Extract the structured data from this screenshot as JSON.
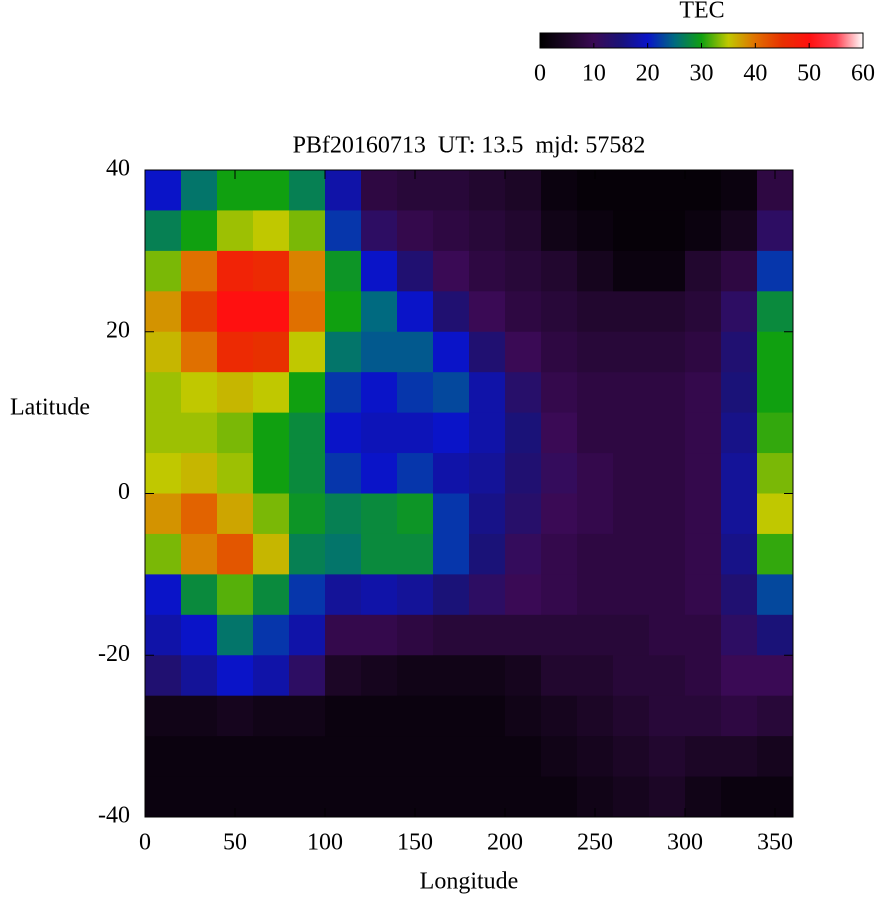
{
  "chart_data": {
    "type": "heatmap",
    "title": "PBf20160713  UT: 13.5  mjd: 57582",
    "x_label": "Longitude",
    "y_label": "Latitude",
    "colorbar_label": "TEC",
    "xlim": [
      0,
      360
    ],
    "ylim": [
      -40,
      40
    ],
    "clim": [
      0,
      60
    ],
    "xticks": [
      0,
      50,
      100,
      150,
      200,
      250,
      300,
      350
    ],
    "yticks": [
      -40,
      -20,
      0,
      20,
      40
    ],
    "cticks": [
      0,
      10,
      20,
      30,
      40,
      50,
      60
    ],
    "cell_width": 20,
    "cell_height": 5,
    "colorscale": [
      [
        0,
        "#000000"
      ],
      [
        5,
        "#1c0626"
      ],
      [
        10,
        "#3a0a55"
      ],
      [
        15,
        "#1a1278"
      ],
      [
        20,
        "#0a14c8"
      ],
      [
        25,
        "#006a80"
      ],
      [
        30,
        "#10a010"
      ],
      [
        35,
        "#c0c800"
      ],
      [
        40,
        "#e07000"
      ],
      [
        45,
        "#e83000"
      ],
      [
        50,
        "#ff1010"
      ],
      [
        55,
        "#ff4050"
      ],
      [
        60,
        "#ffffff"
      ]
    ],
    "x": [
      10,
      30,
      50,
      70,
      90,
      110,
      130,
      150,
      170,
      190,
      210,
      230,
      250,
      270,
      290,
      310,
      330,
      350
    ],
    "y": [
      37.5,
      32.5,
      27.5,
      22.5,
      17.5,
      12.5,
      7.5,
      2.5,
      -2.5,
      -7.5,
      -12.5,
      -17.5,
      -22.5,
      -27.5,
      -32.5,
      -37.5
    ],
    "z": [
      [
        20,
        27,
        33,
        38,
        36,
        34,
        34,
        35,
        38,
        33,
        20,
        18,
        14,
        3,
        2,
        2
      ],
      [
        26,
        30,
        40,
        44,
        40,
        35,
        34,
        36,
        41,
        39,
        28,
        20,
        17,
        3,
        2,
        2
      ],
      [
        30,
        34,
        47,
        50,
        46,
        36,
        33,
        34,
        37,
        42,
        32,
        26,
        20,
        4,
        2,
        2
      ],
      [
        30,
        35,
        46,
        50,
        45,
        35,
        30,
        30,
        33,
        36,
        28,
        22,
        18,
        3,
        2,
        2
      ],
      [
        27,
        33,
        39,
        40,
        35,
        30,
        28,
        28,
        29,
        27,
        22,
        18,
        12,
        3,
        2,
        2
      ],
      [
        18,
        22,
        29,
        30,
        26,
        22,
        20,
        22,
        27,
        26,
        17,
        9,
        5,
        2,
        2,
        2
      ],
      [
        8,
        12,
        20,
        25,
        24,
        20,
        19,
        20,
        28,
        28,
        18,
        9,
        4,
        2,
        2,
        2
      ],
      [
        7,
        9,
        14,
        20,
        24,
        22,
        19,
        22,
        29,
        28,
        17,
        8,
        3,
        2,
        2,
        2
      ],
      [
        7,
        8,
        10,
        14,
        20,
        23,
        20,
        18,
        22,
        22,
        15,
        7,
        3,
        2,
        2,
        2
      ],
      [
        6,
        7,
        8,
        10,
        14,
        18,
        18,
        17,
        16,
        15,
        12,
        7,
        3,
        2,
        2,
        2
      ],
      [
        5,
        6,
        7,
        8,
        10,
        13,
        15,
        14,
        13,
        11,
        10,
        7,
        4,
        3,
        2,
        2
      ],
      [
        2,
        3,
        6,
        7,
        8,
        9,
        10,
        11,
        10,
        9,
        9,
        7,
        6,
        4,
        3,
        2
      ],
      [
        1,
        2,
        4,
        6,
        7,
        8,
        8,
        9,
        9,
        8,
        8,
        7,
        6,
        5,
        4,
        3
      ],
      [
        1,
        1,
        2,
        6,
        7,
        8,
        8,
        8,
        8,
        8,
        8,
        7,
        7,
        6,
        5,
        4
      ],
      [
        1,
        1,
        2,
        6,
        7,
        8,
        8,
        8,
        8,
        8,
        8,
        8,
        7,
        7,
        6,
        5
      ],
      [
        1,
        2,
        6,
        7,
        8,
        9,
        9,
        9,
        9,
        9,
        9,
        8,
        8,
        7,
        5,
        3
      ],
      [
        2,
        4,
        8,
        12,
        14,
        15,
        16,
        17,
        17,
        16,
        14,
        12,
        10,
        8,
        5,
        2
      ],
      [
        8,
        12,
        22,
        28,
        30,
        30,
        31,
        33,
        35,
        31,
        23,
        15,
        10,
        7,
        4,
        2
      ]
    ]
  }
}
